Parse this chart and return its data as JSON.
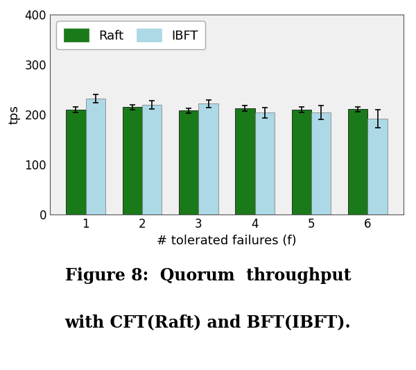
{
  "categories": [
    1,
    2,
    3,
    4,
    5,
    6
  ],
  "raft_values": [
    210,
    215,
    208,
    213,
    210,
    211
  ],
  "ibft_values": [
    232,
    220,
    222,
    204,
    204,
    192
  ],
  "raft_errors": [
    5,
    5,
    5,
    6,
    5,
    5
  ],
  "ibft_errors": [
    8,
    8,
    8,
    10,
    14,
    18
  ],
  "raft_color": "#1a7a1a",
  "ibft_color": "#add8e6",
  "bar_width": 0.35,
  "ylim": [
    0,
    400
  ],
  "yticks": [
    0,
    100,
    200,
    300,
    400
  ],
  "xlabel": "# tolerated failures (f)",
  "ylabel": "tps",
  "legend_labels": [
    "Raft",
    "IBFT"
  ],
  "caption_line1": "Figure 8:  Quorum  throughput",
  "caption_line2": "with CFT(Raft) and BFT(IBFT).",
  "caption_fontsize": 17,
  "tick_fontsize": 12,
  "label_fontsize": 13,
  "legend_fontsize": 13,
  "figure_bg": "#ffffff",
  "axes_bg": "#f0f0f0",
  "edge_color": "#aaaaaa"
}
